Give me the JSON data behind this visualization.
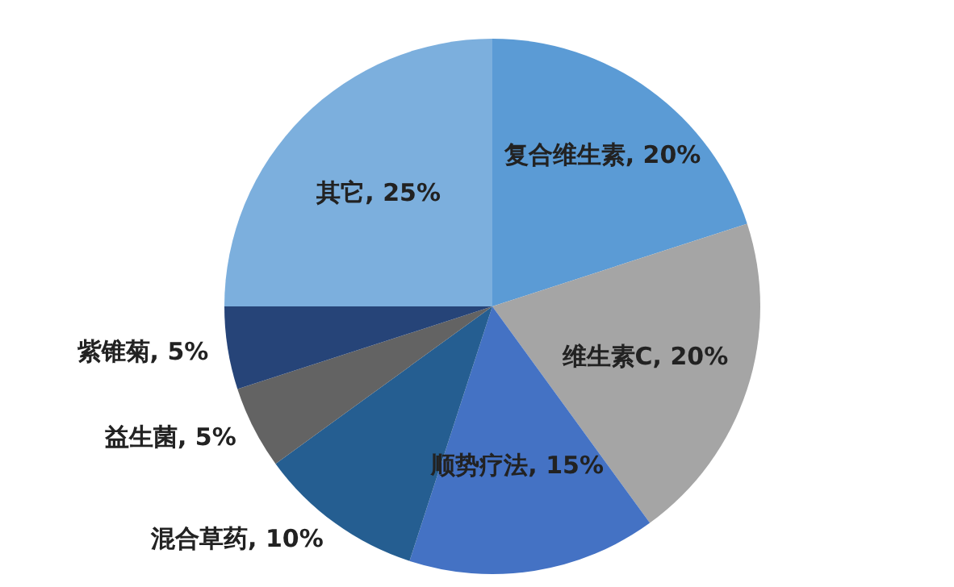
{
  "chart_data": {
    "type": "pie",
    "categories": [
      "复合维生素",
      "维生素C",
      "顺势疗法",
      "混合草药",
      "益生菌",
      "紫锥菊",
      "其它"
    ],
    "values": [
      20,
      20,
      15,
      10,
      5,
      5,
      25
    ],
    "value_labels": [
      "20%",
      "20%",
      "15%",
      "10%",
      "5%",
      "5%",
      "25%"
    ],
    "colors": [
      "#5b9bd5",
      "#a5a5a5",
      "#4472c4",
      "#255e91",
      "#636363",
      "#264478",
      "#7cafdd"
    ],
    "legend": false
  }
}
